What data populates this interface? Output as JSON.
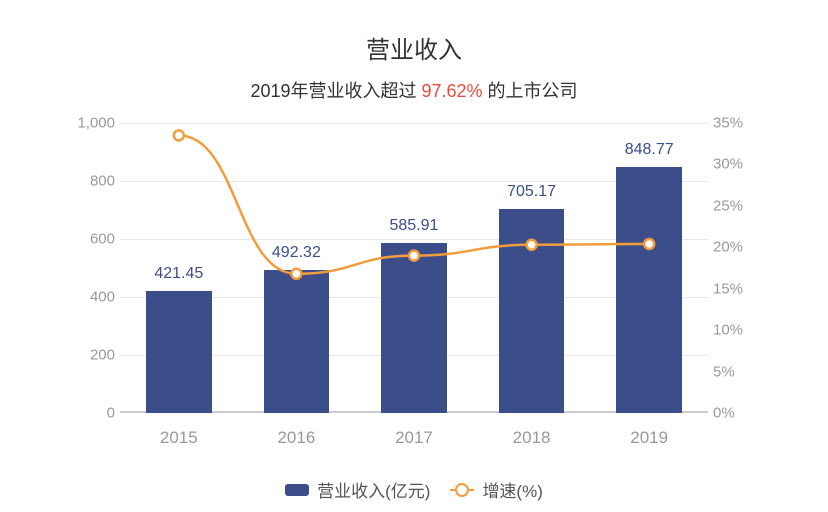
{
  "chart": {
    "title": "营业收入",
    "subtitle_prefix": "2019年营业收入超过 ",
    "subtitle_highlight": "97.62%",
    "subtitle_suffix": " 的上市公司",
    "categories": [
      "2015",
      "2016",
      "2017",
      "2018",
      "2019"
    ],
    "bar_values": [
      421.45,
      492.32,
      585.91,
      705.17,
      848.77
    ],
    "bar_labels": [
      "421.45",
      "492.32",
      "585.91",
      "705.17",
      "848.77"
    ],
    "line_values_pct": [
      33.5,
      16.8,
      19.0,
      20.3,
      20.4
    ],
    "left_axis": {
      "min": 0,
      "max": 1000,
      "ticks": [
        0,
        200,
        400,
        600,
        800,
        1000
      ],
      "labels": [
        "0",
        "200",
        "400",
        "600",
        "800",
        "1,000"
      ]
    },
    "right_axis": {
      "min": 0,
      "max": 35,
      "ticks": [
        0,
        5,
        10,
        15,
        20,
        25,
        30,
        35
      ],
      "labels": [
        "0%",
        "5%",
        "10%",
        "15%",
        "20%",
        "25%",
        "30%",
        "35%"
      ]
    },
    "colors": {
      "bar": "#3c4e8a",
      "line": "#f39c3c",
      "grid": "#e8e8e8",
      "baseline": "#cccccc",
      "axis_text": "#999999",
      "title_text": "#333333",
      "highlight_text": "#e74c3c",
      "legend_text": "#555555",
      "background": "#ffffff"
    },
    "legend": {
      "bar": "营业收入(亿元)",
      "line": "增速(%)"
    },
    "font_sizes": {
      "title": 24,
      "subtitle": 18,
      "axis": 15,
      "bar_label": 16,
      "x_tick": 17,
      "legend": 17
    }
  }
}
